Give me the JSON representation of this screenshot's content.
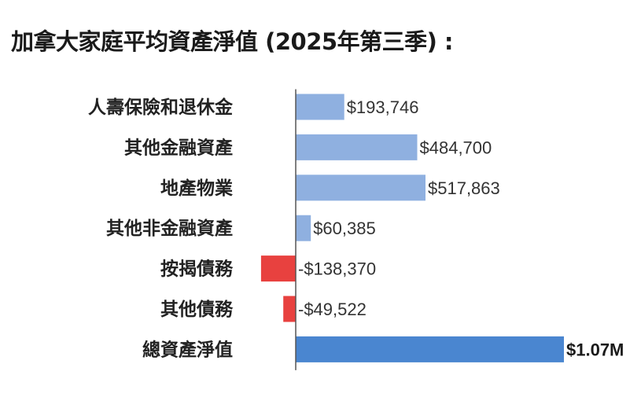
{
  "chart_data": {
    "type": "bar",
    "orientation": "horizontal",
    "title": "加拿大家庭平均資產淨值 (2025年第三季) :",
    "categories": [
      "人壽保險和退休金",
      "其他金融資產",
      "地產物業",
      "其他非金融資產",
      "按揭債務",
      "其他債務",
      "總資產淨值"
    ],
    "values": [
      193746,
      484700,
      517863,
      60385,
      -138370,
      -49522,
      1070000
    ],
    "value_labels": [
      "$193,746",
      "$484,700",
      "$517,863",
      "$60,385",
      "-$138,370",
      "-$49,522",
      "$1.07M"
    ],
    "colors": [
      "#8fb0e0",
      "#8fb0e0",
      "#8fb0e0",
      "#8fb0e0",
      "#e8413f",
      "#e8413f",
      "#4a86d0"
    ],
    "grid": false,
    "legend": "none"
  }
}
